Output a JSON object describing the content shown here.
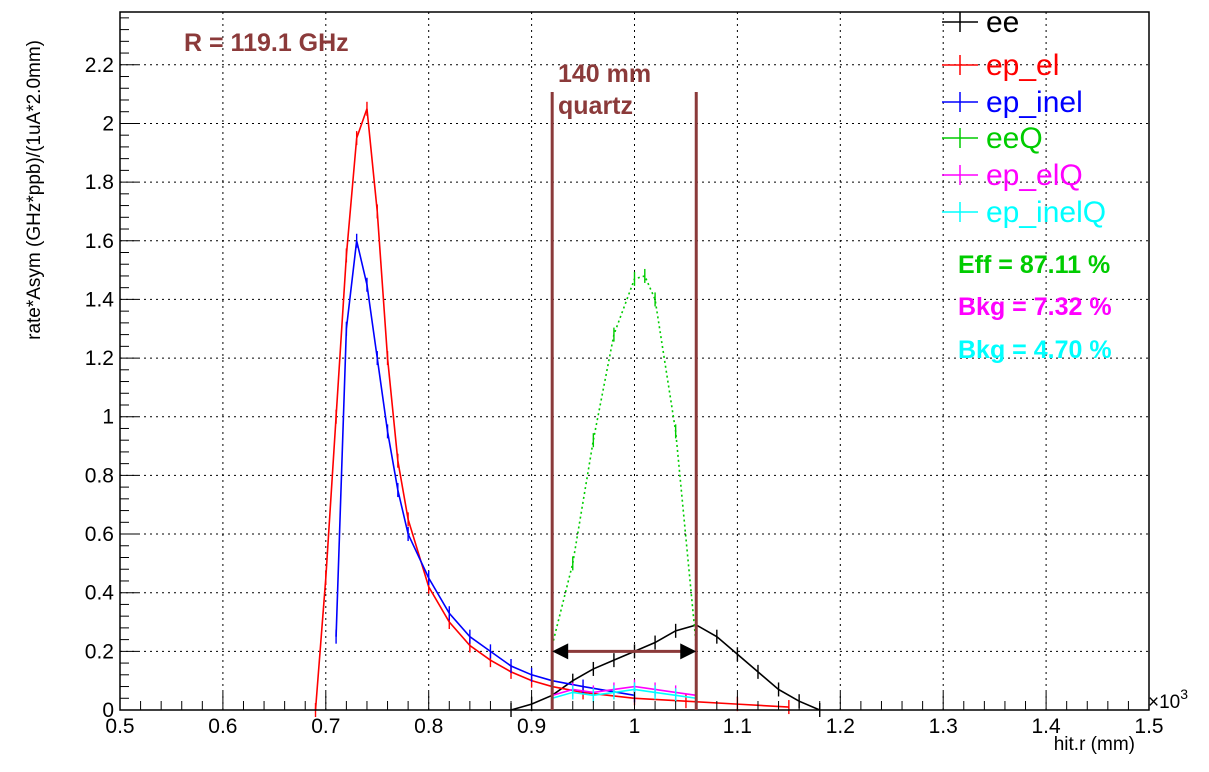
{
  "chart_data": {
    "type": "line",
    "title": "",
    "xlabel": "hit.r (mm)",
    "ylabel": "rate*Asym (GHz*ppb)/(1uA*2.0mm)",
    "x_exponent_label": "×10",
    "x_exponent_power": "3",
    "xlim": [
      0.5,
      1.5
    ],
    "ylim": [
      0,
      2.38
    ],
    "x_ticks": [
      0.5,
      0.6,
      0.7,
      0.8,
      0.9,
      1.0,
      1.1,
      1.2,
      1.3,
      1.4,
      1.5
    ],
    "x_tick_labels": [
      "0.5",
      "0.6",
      "0.7",
      "0.8",
      "0.9",
      "1",
      "1.1",
      "1.2",
      "1.3",
      "1.4",
      "1.5"
    ],
    "y_ticks": [
      0,
      0.2,
      0.4,
      0.6,
      0.8,
      1.0,
      1.2,
      1.4,
      1.6,
      1.8,
      2.0,
      2.2
    ],
    "y_tick_labels": [
      "0",
      "0.2",
      "0.4",
      "0.6",
      "0.8",
      "1",
      "1.2",
      "1.4",
      "1.6",
      "1.8",
      "2",
      "2.2"
    ],
    "grid": true,
    "legend_position": "top-right",
    "series": [
      {
        "name": "ee",
        "color": "#000000",
        "x": [
          0.88,
          0.9,
          0.92,
          0.94,
          0.96,
          0.98,
          1.0,
          1.02,
          1.04,
          1.06,
          1.08,
          1.1,
          1.12,
          1.14,
          1.16,
          1.18
        ],
        "y": [
          0.0,
          0.02,
          0.05,
          0.1,
          0.14,
          0.17,
          0.2,
          0.23,
          0.27,
          0.29,
          0.25,
          0.19,
          0.13,
          0.07,
          0.03,
          0.0
        ]
      },
      {
        "name": "ep_el",
        "color": "#ff0000",
        "x": [
          0.69,
          0.7,
          0.71,
          0.72,
          0.73,
          0.74,
          0.75,
          0.76,
          0.77,
          0.78,
          0.8,
          0.82,
          0.84,
          0.86,
          0.88,
          0.9,
          0.92,
          0.95,
          1.0,
          1.05,
          1.1,
          1.15
        ],
        "y": [
          0.0,
          0.45,
          1.0,
          1.55,
          1.95,
          2.05,
          1.7,
          1.2,
          0.85,
          0.65,
          0.42,
          0.3,
          0.22,
          0.17,
          0.13,
          0.1,
          0.08,
          0.06,
          0.04,
          0.03,
          0.02,
          0.01
        ]
      },
      {
        "name": "ep_inel",
        "color": "#0000ff",
        "x": [
          0.71,
          0.72,
          0.73,
          0.74,
          0.75,
          0.76,
          0.77,
          0.78,
          0.8,
          0.82,
          0.84,
          0.86,
          0.88,
          0.9,
          0.92,
          0.95,
          1.0
        ],
        "y": [
          0.25,
          1.3,
          1.6,
          1.45,
          1.2,
          0.95,
          0.75,
          0.6,
          0.45,
          0.33,
          0.25,
          0.2,
          0.15,
          0.12,
          0.1,
          0.08,
          0.05
        ]
      },
      {
        "name": "eeQ",
        "color": "#00cc00",
        "x": [
          0.92,
          0.94,
          0.96,
          0.98,
          1.0,
          1.01,
          1.02,
          1.04,
          1.06
        ],
        "y": [
          0.22,
          0.5,
          0.92,
          1.28,
          1.47,
          1.48,
          1.4,
          0.95,
          0.22
        ]
      },
      {
        "name": "ep_elQ",
        "color": "#ff00ff",
        "x": [
          0.92,
          0.94,
          0.96,
          0.98,
          1.0,
          1.02,
          1.04,
          1.06
        ],
        "y": [
          0.05,
          0.07,
          0.06,
          0.07,
          0.08,
          0.07,
          0.06,
          0.05
        ]
      },
      {
        "name": "ep_inelQ",
        "color": "#00ffff",
        "x": [
          0.92,
          0.94,
          0.96,
          0.98,
          1.0,
          1.02,
          1.04,
          1.06
        ],
        "y": [
          0.04,
          0.06,
          0.05,
          0.06,
          0.07,
          0.06,
          0.05,
          0.04
        ]
      }
    ],
    "annotations": {
      "radius": "R = 119.1 GHz",
      "quartz_line1": "140 mm",
      "quartz_line2": "quartz",
      "quartz_x_start": 0.92,
      "quartz_x_end": 1.06,
      "arrow_y": 0.2,
      "eff": "Eff = 87.11 %",
      "bkg1": "Bkg = 7.32 %",
      "bkg2": "Bkg = 4.70 %",
      "annotation_color": "#8b3a3a",
      "eff_color": "#00cc00",
      "bkg1_color": "#ff00ff",
      "bkg2_color": "#00ffff"
    }
  }
}
